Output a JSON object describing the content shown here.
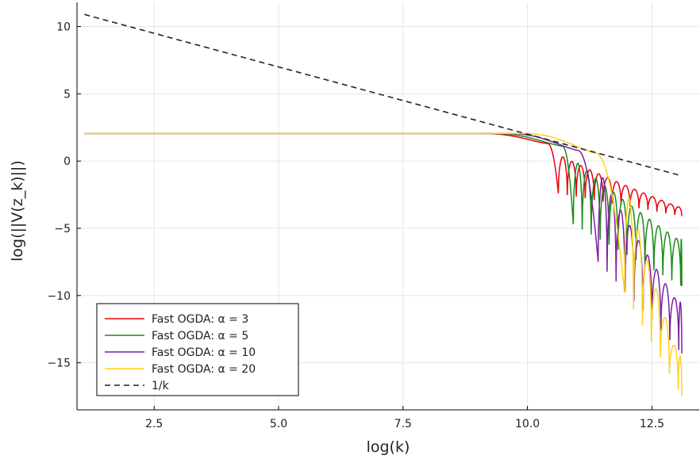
{
  "chart_data": {
    "type": "line",
    "xlabel": "log(k)",
    "ylabel": "log(||V(z_k)||)",
    "xlim": [
      0.95,
      13.45
    ],
    "ylim": [
      -18.5,
      11.8
    ],
    "xticks": [
      2.5,
      5.0,
      7.5,
      10.0,
      12.5
    ],
    "xtick_labels": [
      "2.5",
      "5.0",
      "7.5",
      "10.0",
      "12.5"
    ],
    "yticks": [
      10,
      5,
      0,
      -5,
      -10,
      -15
    ],
    "ytick_labels": [
      "10",
      "5",
      "0",
      "−5",
      "−10",
      "−15"
    ],
    "grid": true,
    "legend_position": "bottom-left",
    "series": [
      {
        "name": "Fast OGDA: α = 3",
        "color": "#e8000b",
        "style": "solid",
        "plateau": 2.05,
        "plateau_end": 9.0,
        "knee_x": 10.4,
        "knee_y": 1.3,
        "first_dip_x": 10.62,
        "first_dip_y": -2.4,
        "end_x": 13.1,
        "envelope_end_y": -3.4,
        "dip_end_y": -4.1,
        "oscillation_period": 0.18
      },
      {
        "name": "Fast OGDA: α = 5",
        "color": "#1a8a1a",
        "style": "solid",
        "plateau": 2.05,
        "plateau_end": 9.2,
        "knee_x": 10.7,
        "knee_y": 1.1,
        "first_dip_x": 10.92,
        "first_dip_y": -4.7,
        "end_x": 13.1,
        "envelope_end_y": -5.8,
        "dip_end_y": -9.3,
        "oscillation_period": 0.18
      },
      {
        "name": "Fast OGDA: α = 10",
        "color": "#7b1fa2",
        "style": "solid",
        "plateau": 2.05,
        "plateau_end": 9.5,
        "knee_x": 11.0,
        "knee_y": 0.8,
        "first_dip_x": 11.42,
        "first_dip_y": -7.5,
        "end_x": 13.1,
        "envelope_end_y": -10.5,
        "dip_end_y": -14.3,
        "oscillation_period": 0.18
      },
      {
        "name": "Fast OGDA: α = 20",
        "color": "#ffd21f",
        "style": "solid",
        "plateau": 2.05,
        "plateau_end": 9.8,
        "knee_x": 11.35,
        "knee_y": 0.6,
        "first_dip_x": 11.95,
        "first_dip_y": -9.8,
        "end_x": 13.1,
        "envelope_end_y": -14.5,
        "dip_end_y": -17.5,
        "oscillation_period": 0.18
      },
      {
        "name": "1/k",
        "color": "#222222",
        "style": "dashed",
        "x": [
          1.1,
          13.1
        ],
        "y": [
          10.9,
          -1.1
        ]
      }
    ]
  }
}
